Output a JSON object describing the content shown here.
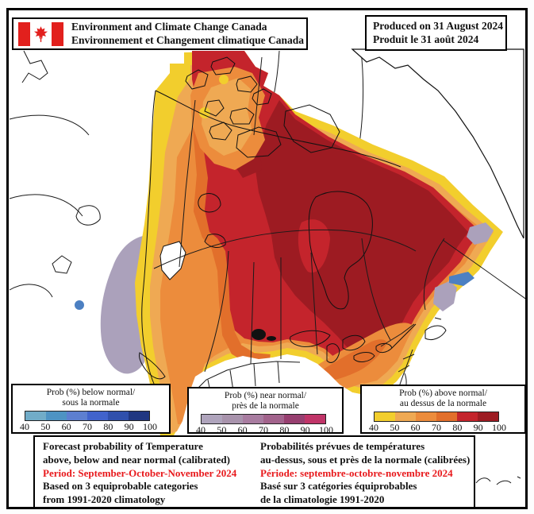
{
  "header": {
    "agency_line1": "Environment and Climate Change Canada",
    "agency_line2": "Environnement et Changement climatique Canada",
    "produced_line1": "Produced on 31 August 2024",
    "produced_line2": "Produit le 31 août 2024"
  },
  "legends": [
    {
      "id": "below-normal",
      "title_line1": "Prob (%) below normal/",
      "title_line2": "sous la normale",
      "ticks": [
        "40",
        "50",
        "60",
        "70",
        "80",
        "90",
        "100"
      ],
      "colors": [
        "#71ACC8",
        "#4E93C3",
        "#5D7FD0",
        "#4163CC",
        "#3050AC",
        "#203781"
      ]
    },
    {
      "id": "near-normal",
      "title_line1": "Prob (%) near normal/",
      "title_line2": "près de la normale",
      "ticks": [
        "40",
        "50",
        "60",
        "70",
        "80",
        "90",
        "100"
      ],
      "colors": [
        "#AFA4BC",
        "#A893AC",
        "#A87CA0",
        "#A2638C",
        "#973F70",
        "#C03468"
      ]
    },
    {
      "id": "above-normal",
      "title_line1": "Prob (%) above normal/",
      "title_line2": "au dessus de la normale",
      "ticks": [
        "40",
        "50",
        "60",
        "70",
        "80",
        "90",
        "100"
      ],
      "colors": [
        "#F2CE2D",
        "#EFA953",
        "#EC8C3C",
        "#E26F2B",
        "#C4242C",
        "#9D1B22"
      ]
    }
  ],
  "footer": {
    "en_lines": [
      "Forecast probability of Temperature",
      "above, below and near normal (calibrated)",
      "Period: September-October-November 2024",
      "Based on 3 equiprobable categories",
      " from 1991-2020 climatology"
    ],
    "fr_lines": [
      "Probabilités prévues de températures",
      "au-dessus, sous et près de la normale (calibrées)",
      "Période: septembre-octobre-novembre 2024",
      "Basé sur 3 catégories équiprobables",
      "de la climatologie 1991-2020"
    ],
    "highlight_index": 2,
    "highlight_color": "#E8191C"
  },
  "map": {
    "flag_red": "#E2201D",
    "probability_range": [
      40,
      100
    ]
  }
}
